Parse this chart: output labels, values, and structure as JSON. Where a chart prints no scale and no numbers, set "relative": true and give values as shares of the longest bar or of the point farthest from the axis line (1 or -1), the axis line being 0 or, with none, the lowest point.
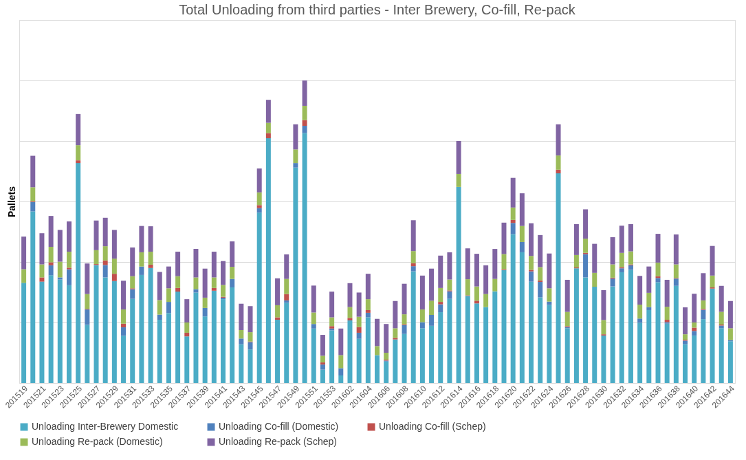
{
  "chart_data": {
    "type": "bar",
    "title": "Total Unloading from third parties - Inter Brewery, Co-fill, Re-pack",
    "ylabel": "Pallets",
    "relative": true,
    "stacked": true,
    "grid": "y",
    "legend": "bottom",
    "categories": [
      "201519",
      null,
      "201521",
      null,
      "201523",
      null,
      "201525",
      null,
      "201527",
      null,
      "201529",
      null,
      "201531",
      null,
      "201533",
      null,
      "201535",
      null,
      "201537",
      null,
      "201539",
      null,
      "201541",
      null,
      "201543",
      null,
      "201545",
      null,
      "201547",
      null,
      "201549",
      null,
      "201551",
      null,
      "201553",
      null,
      "201602",
      null,
      "201604",
      null,
      "201606",
      null,
      "201608",
      null,
      "201610",
      null,
      "201612",
      null,
      "201614",
      null,
      "201616",
      null,
      "201618",
      null,
      "201620",
      null,
      "201622",
      null,
      "201624",
      null,
      "201626",
      null,
      "201628",
      null,
      "201630",
      null,
      "201632",
      null,
      "201634",
      null,
      "201636",
      null,
      "201638",
      null,
      "201640",
      null,
      "201642",
      null,
      "201644"
    ],
    "series": [
      {
        "name": "Unloading Inter-Brewery Domestic",
        "color": "#4bacc6",
        "values": [
          0.331,
          0.567,
          0.335,
          0.356,
          0.342,
          0.323,
          0.727,
          0.192,
          0.39,
          0.349,
          0.337,
          0.156,
          0.278,
          0.357,
          0.38,
          0.209,
          0.231,
          0.302,
          0.154,
          0.299,
          0.22,
          0.305,
          0.277,
          0.316,
          0.128,
          0.111,
          0.563,
          0.809,
          0.209,
          0.265,
          0.712,
          0.826,
          0.18,
          0.044,
          0.174,
          0.025,
          0.207,
          0.146,
          0.217,
          0.092,
          0.071,
          0.144,
          0.162,
          0.369,
          0.181,
          0.189,
          0.234,
          0.278,
          0.648,
          0.288,
          0.263,
          0.251,
          0.303,
          0.373,
          0.492,
          0.432,
          0.335,
          0.283,
          0.258,
          0.693,
          0.181,
          0.379,
          0.349,
          0.318,
          0.157,
          0.319,
          0.366,
          0.374,
          0.199,
          0.241,
          0.333,
          0.196,
          0.321,
          0.128,
          0.157,
          0.211,
          0.312,
          0.181,
          0.138
        ]
      },
      {
        "name": "Unloading Co-fill (Domestic)",
        "color": "#4f81bd",
        "values": [
          0,
          0.031,
          0,
          0.033,
          0.007,
          0.053,
          0,
          0.051,
          0,
          0.041,
          0,
          0.028,
          0.032,
          0.028,
          0,
          0.017,
          0.037,
          0,
          0,
          0.011,
          0.028,
          0,
          0.005,
          0.028,
          0.019,
          0.024,
          0.015,
          0,
          0,
          0.008,
          0.015,
          0.024,
          0.015,
          0.017,
          0.006,
          0.024,
          0,
          0.02,
          0.015,
          0,
          0.003,
          0,
          0.029,
          0.017,
          0.02,
          0.036,
          0.026,
          0.025,
          0,
          0,
          0,
          0,
          0,
          0,
          0.037,
          0.034,
          0.034,
          0.051,
          0.011,
          0,
          0.004,
          0,
          0.077,
          0,
          0,
          0.026,
          0.013,
          0.015,
          0.014,
          0.01,
          0.014,
          0.005,
          0.024,
          0.012,
          0.015,
          0.031,
          0,
          0.009,
          0.004
        ]
      },
      {
        "name": "Unloading Co-fill (Schep)",
        "color": "#c0504d",
        "values": [
          0,
          0.003,
          0.014,
          0.01,
          0,
          0.005,
          0.009,
          0.002,
          0.003,
          0.015,
          0.024,
          0.012,
          0.003,
          0,
          0.011,
          0,
          0,
          0.012,
          0.012,
          0,
          0,
          0.009,
          0.003,
          0,
          0,
          0.002,
          0.01,
          0.017,
          0.008,
          0.021,
          0,
          0.019,
          0,
          0.007,
          0.008,
          0,
          0.008,
          0.019,
          0.009,
          0,
          0.003,
          0.005,
          0.003,
          0.01,
          0,
          0,
          0.008,
          0.003,
          0,
          0.002,
          0.009,
          0,
          0,
          0.003,
          0.01,
          0,
          0.005,
          0.005,
          0,
          0.012,
          0.003,
          0.003,
          0.004,
          0,
          0.004,
          0.003,
          0.004,
          0.003,
          0,
          0,
          0.006,
          0.008,
          0.002,
          0.003,
          0.011,
          0.003,
          0.004,
          0.003,
          0
        ]
      },
      {
        "name": "Unloading Re-pack (Domestic)",
        "color": "#9bbb59",
        "values": [
          0.045,
          0.046,
          0.043,
          0.051,
          0.052,
          0.053,
          0.05,
          0.049,
          0.046,
          0.047,
          0.05,
          0.047,
          0.04,
          0.047,
          0.043,
          0.048,
          0.045,
          0.039,
          0.034,
          0.039,
          0.034,
          0.035,
          0.039,
          0.04,
          0.028,
          0.031,
          0.042,
          0.034,
          0.04,
          0.05,
          0.045,
          0.047,
          0.038,
          0.022,
          0.029,
          0.043,
          0.036,
          0.034,
          0.036,
          0.03,
          0.023,
          0.032,
          0.033,
          0.04,
          0.042,
          0.047,
          0.046,
          0.036,
          0.043,
          0.053,
          0.047,
          0.043,
          0.041,
          0.05,
          0.041,
          0.053,
          0.046,
          0.044,
          0.044,
          0.047,
          0.047,
          0.041,
          0.047,
          0.046,
          0.047,
          0.044,
          0.047,
          0.043,
          0.046,
          0.047,
          0.045,
          0.043,
          0.045,
          0.018,
          0.017,
          0.028,
          0.039,
          0.042,
          0.039
        ]
      },
      {
        "name": "Unloading Re-pack (Schep)",
        "color": "#8064a2",
        "values": [
          0.108,
          0.104,
          0.103,
          0.102,
          0.105,
          0.1,
          0.103,
          0.101,
          0.098,
          0.094,
          0.095,
          0.095,
          0.095,
          0.087,
          0.084,
          0.093,
          0.072,
          0.081,
          0.077,
          0.094,
          0.096,
          0.085,
          0.079,
          0.084,
          0.087,
          0.086,
          0.079,
          0.076,
          0.089,
          0.081,
          0.083,
          0.084,
          0.089,
          0.069,
          0.085,
          0.088,
          0.079,
          0.08,
          0.084,
          0.09,
          0.095,
          0.09,
          0.101,
          0.102,
          0.112,
          0.106,
          0.107,
          0.09,
          0.109,
          0.102,
          0.108,
          0.095,
          0.099,
          0.104,
          0.098,
          0.108,
          0.108,
          0.106,
          0.115,
          0.103,
          0.106,
          0.102,
          0.097,
          0.096,
          0.099,
          0.09,
          0.09,
          0.09,
          0.095,
          0.087,
          0.095,
          0.089,
          0.099,
          0.089,
          0.095,
          0.09,
          0.098,
          0.086,
          0.09
        ]
      }
    ]
  }
}
